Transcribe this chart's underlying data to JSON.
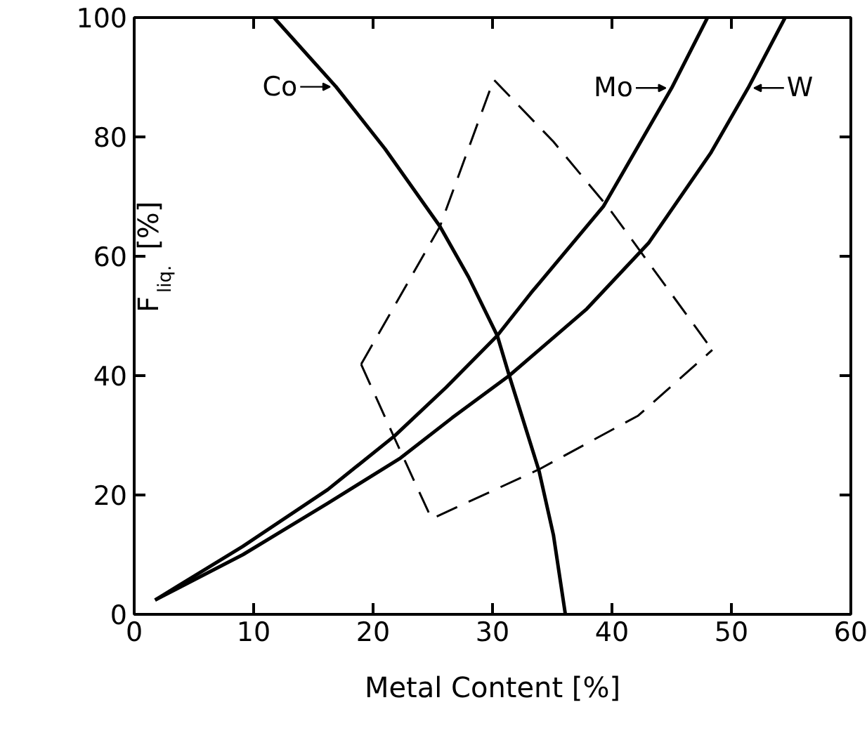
{
  "chart_data": {
    "type": "line",
    "xlabel": "Metal Content [%]",
    "ylabel": "F$_{liq.}$ [%]",
    "xlim": [
      0,
      60
    ],
    "ylim": [
      0,
      100
    ],
    "xticks": [
      0,
      10,
      20,
      30,
      40,
      50,
      60
    ],
    "yticks": [
      0,
      20,
      40,
      60,
      80,
      100
    ],
    "grid": false,
    "legend": "top",
    "marker": "none",
    "series": [
      {
        "name": "Co",
        "color": "#000000",
        "line_style": "solid",
        "x": [
          11.7,
          16.9,
          21.0,
          25.6,
          28.0,
          30.4,
          31.4,
          33.9,
          35.1,
          36.1
        ],
        "values": [
          100,
          88.4,
          78.0,
          65.0,
          56.5,
          46.7,
          40.0,
          24.0,
          13.3,
          0
        ]
      },
      {
        "name": "Mo",
        "color": "#000000",
        "line_style": "solid",
        "x": [
          1.75,
          9.1,
          16.2,
          21.8,
          26.1,
          30.4,
          33.2,
          39.3,
          45.0,
          48.0
        ],
        "values": [
          2.4,
          11.4,
          20.9,
          29.9,
          38.0,
          46.7,
          53.8,
          68.4,
          88.2,
          100
        ]
      },
      {
        "name": "W",
        "color": "#000000",
        "line_style": "solid",
        "x": [
          1.75,
          9.1,
          16.2,
          22.3,
          26.6,
          31.4,
          37.9,
          43.1,
          48.3,
          51.4,
          54.5
        ],
        "values": [
          2.4,
          10.0,
          18.6,
          26.2,
          32.9,
          40.0,
          51.2,
          62.3,
          77.4,
          88.2,
          100
        ]
      },
      {
        "color": "#000000",
        "line_style": "dashed",
        "x": [
          19.0,
          25.6,
          30.1,
          35.1,
          39.8,
          48.4
        ],
        "values": [
          41.9,
          65.0,
          89.6,
          79.2,
          67.9,
          44.3
        ]
      },
      {
        "color": "#000000",
        "line_style": "dashed",
        "x": [
          19.0,
          21.8,
          24.9,
          33.9,
          42.2,
          48.4
        ],
        "values": [
          41.9,
          29.5,
          16.0,
          24.3,
          33.3,
          44.3
        ]
      }
    ]
  }
}
